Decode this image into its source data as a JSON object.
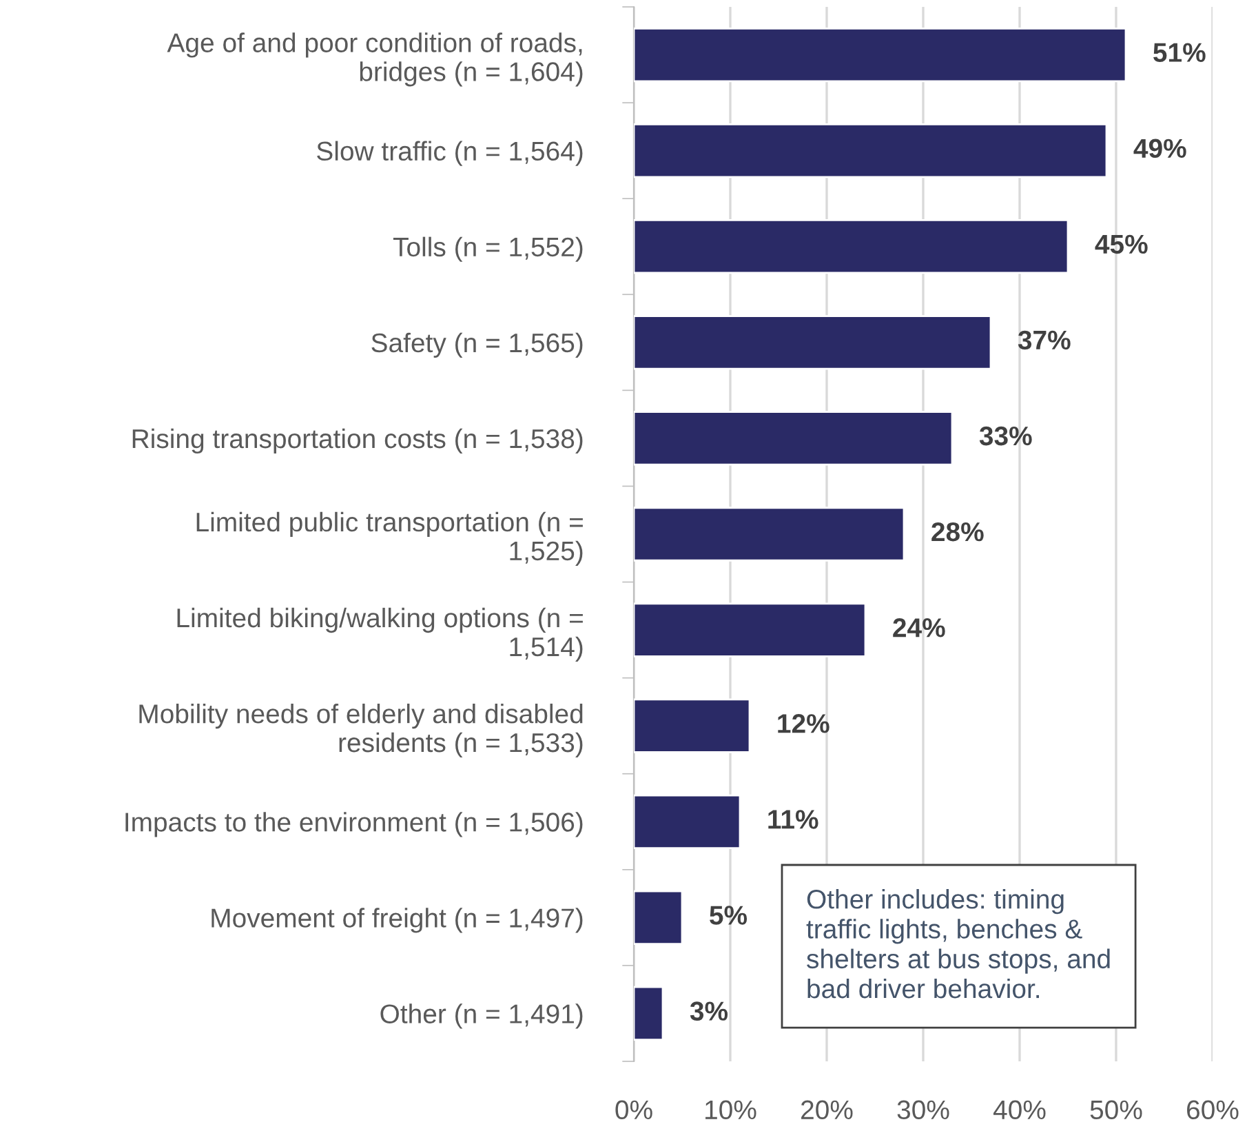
{
  "chart_data": {
    "type": "bar",
    "orientation": "horizontal",
    "categories": [
      "Age of and poor condition of roads,\nbridges (n = 1,604)",
      "Slow traffic (n = 1,564)",
      "Tolls (n = 1,552)",
      "Safety (n = 1,565)",
      "Rising transportation costs (n = 1,538)",
      "Limited public transportation (n =\n1,525)",
      "Limited biking/walking options (n =\n1,514)",
      "Mobility needs of elderly and disabled\nresidents (n = 1,533)",
      "Impacts to the environment (n = 1,506)",
      "Movement of freight (n = 1,497)",
      "Other (n = 1,491)"
    ],
    "values": [
      51,
      49,
      45,
      37,
      33,
      28,
      24,
      12,
      11,
      5,
      3
    ],
    "value_labels": [
      "51%",
      "49%",
      "45%",
      "37%",
      "33%",
      "28%",
      "24%",
      "12%",
      "11%",
      "5%",
      "3%"
    ],
    "color": "#2a2a66",
    "xlim": [
      0,
      60
    ],
    "xticks": [
      {
        "value": 0,
        "label": "0%"
      },
      {
        "value": 10,
        "label": "10%"
      },
      {
        "value": 20,
        "label": "20%"
      },
      {
        "value": 30,
        "label": "30%"
      },
      {
        "value": 40,
        "label": "40%"
      },
      {
        "value": 50,
        "label": "50%"
      },
      {
        "value": 60,
        "label": "60%"
      }
    ],
    "grid": "x",
    "legend": false,
    "annotations": [
      "Other includes: timing\ntraffic lights, benches &\nshelters at bus stops, and\nbad driver behavior."
    ]
  }
}
